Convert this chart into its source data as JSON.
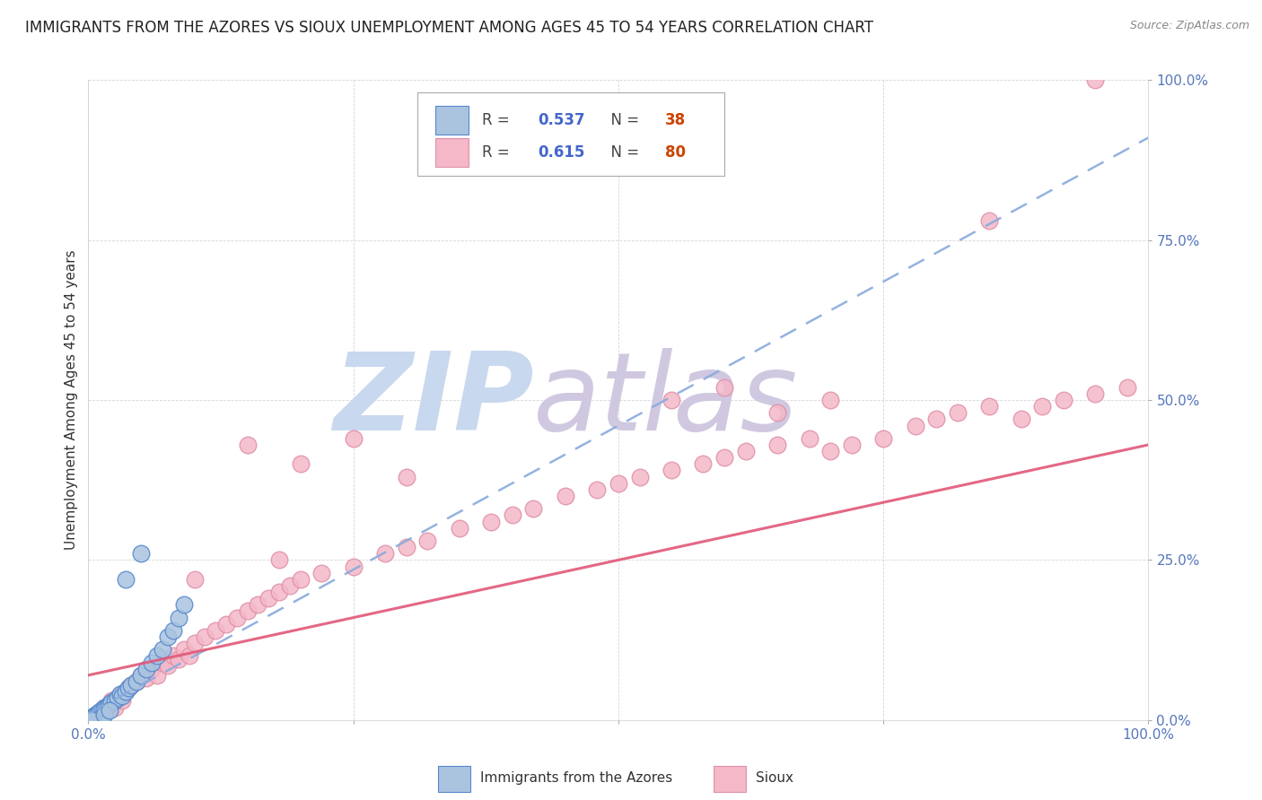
{
  "title": "IMMIGRANTS FROM THE AZORES VS SIOUX UNEMPLOYMENT AMONG AGES 45 TO 54 YEARS CORRELATION CHART",
  "source": "Source: ZipAtlas.com",
  "ylabel": "Unemployment Among Ages 45 to 54 years",
  "xlim": [
    0,
    1
  ],
  "ylim": [
    0,
    1
  ],
  "xticks": [
    0,
    0.25,
    0.5,
    0.75,
    1.0
  ],
  "yticks": [
    0,
    0.25,
    0.5,
    0.75,
    1.0
  ],
  "xticklabels": [
    "0.0%",
    "",
    "",
    "",
    "100.0%"
  ],
  "yticklabels": [
    "0.0%",
    "25.0%",
    "50.0%",
    "75.0%",
    "100.0%"
  ],
  "blue_R": 0.537,
  "blue_N": 38,
  "pink_R": 0.615,
  "pink_N": 80,
  "blue_color": "#aac4e0",
  "blue_edge_color": "#5588cc",
  "pink_color": "#f4b8c8",
  "pink_edge_color": "#e090a8",
  "blue_line_color": "#88aadd",
  "pink_line_color": "#e05878",
  "tick_color": "#5577bb",
  "blue_scatter": [
    [
      0.005,
      0.005
    ],
    [
      0.006,
      0.008
    ],
    [
      0.007,
      0.006
    ],
    [
      0.008,
      0.01
    ],
    [
      0.009,
      0.007
    ],
    [
      0.01,
      0.012
    ],
    [
      0.012,
      0.015
    ],
    [
      0.013,
      0.01
    ],
    [
      0.015,
      0.02
    ],
    [
      0.016,
      0.018
    ],
    [
      0.018,
      0.022
    ],
    [
      0.02,
      0.025
    ],
    [
      0.022,
      0.028
    ],
    [
      0.025,
      0.03
    ],
    [
      0.028,
      0.035
    ],
    [
      0.03,
      0.04
    ],
    [
      0.032,
      0.038
    ],
    [
      0.035,
      0.045
    ],
    [
      0.038,
      0.05
    ],
    [
      0.04,
      0.055
    ],
    [
      0.045,
      0.06
    ],
    [
      0.05,
      0.07
    ],
    [
      0.055,
      0.08
    ],
    [
      0.06,
      0.09
    ],
    [
      0.065,
      0.1
    ],
    [
      0.07,
      0.11
    ],
    [
      0.075,
      0.13
    ],
    [
      0.08,
      0.14
    ],
    [
      0.085,
      0.16
    ],
    [
      0.09,
      0.18
    ],
    [
      0.035,
      0.22
    ],
    [
      0.05,
      0.26
    ],
    [
      0.003,
      0.003
    ],
    [
      0.004,
      0.004
    ],
    [
      0.002,
      0.002
    ],
    [
      0.001,
      0.001
    ],
    [
      0.015,
      0.008
    ],
    [
      0.02,
      0.015
    ]
  ],
  "pink_scatter": [
    [
      0.005,
      0.005
    ],
    [
      0.008,
      0.008
    ],
    [
      0.01,
      0.01
    ],
    [
      0.012,
      0.015
    ],
    [
      0.015,
      0.02
    ],
    [
      0.018,
      0.018
    ],
    [
      0.02,
      0.025
    ],
    [
      0.022,
      0.03
    ],
    [
      0.025,
      0.02
    ],
    [
      0.028,
      0.035
    ],
    [
      0.03,
      0.04
    ],
    [
      0.032,
      0.03
    ],
    [
      0.035,
      0.045
    ],
    [
      0.038,
      0.05
    ],
    [
      0.04,
      0.055
    ],
    [
      0.045,
      0.06
    ],
    [
      0.05,
      0.07
    ],
    [
      0.055,
      0.065
    ],
    [
      0.06,
      0.08
    ],
    [
      0.065,
      0.07
    ],
    [
      0.07,
      0.09
    ],
    [
      0.075,
      0.085
    ],
    [
      0.08,
      0.1
    ],
    [
      0.085,
      0.095
    ],
    [
      0.09,
      0.11
    ],
    [
      0.095,
      0.1
    ],
    [
      0.1,
      0.12
    ],
    [
      0.11,
      0.13
    ],
    [
      0.12,
      0.14
    ],
    [
      0.13,
      0.15
    ],
    [
      0.14,
      0.16
    ],
    [
      0.15,
      0.17
    ],
    [
      0.16,
      0.18
    ],
    [
      0.17,
      0.19
    ],
    [
      0.18,
      0.2
    ],
    [
      0.19,
      0.21
    ],
    [
      0.2,
      0.22
    ],
    [
      0.22,
      0.23
    ],
    [
      0.25,
      0.24
    ],
    [
      0.28,
      0.26
    ],
    [
      0.3,
      0.27
    ],
    [
      0.32,
      0.28
    ],
    [
      0.35,
      0.3
    ],
    [
      0.38,
      0.31
    ],
    [
      0.4,
      0.32
    ],
    [
      0.42,
      0.33
    ],
    [
      0.45,
      0.35
    ],
    [
      0.48,
      0.36
    ],
    [
      0.5,
      0.37
    ],
    [
      0.52,
      0.38
    ],
    [
      0.55,
      0.39
    ],
    [
      0.58,
      0.4
    ],
    [
      0.6,
      0.41
    ],
    [
      0.62,
      0.42
    ],
    [
      0.65,
      0.43
    ],
    [
      0.68,
      0.44
    ],
    [
      0.7,
      0.42
    ],
    [
      0.72,
      0.43
    ],
    [
      0.75,
      0.44
    ],
    [
      0.78,
      0.46
    ],
    [
      0.8,
      0.47
    ],
    [
      0.82,
      0.48
    ],
    [
      0.85,
      0.49
    ],
    [
      0.88,
      0.47
    ],
    [
      0.9,
      0.49
    ],
    [
      0.92,
      0.5
    ],
    [
      0.95,
      0.51
    ],
    [
      0.98,
      0.52
    ],
    [
      0.15,
      0.43
    ],
    [
      0.2,
      0.4
    ],
    [
      0.25,
      0.44
    ],
    [
      0.3,
      0.38
    ],
    [
      0.55,
      0.5
    ],
    [
      0.6,
      0.52
    ],
    [
      0.65,
      0.48
    ],
    [
      0.7,
      0.5
    ],
    [
      0.85,
      0.78
    ],
    [
      0.95,
      1.0
    ],
    [
      0.1,
      0.22
    ],
    [
      0.18,
      0.25
    ]
  ],
  "watermark_zip": "ZIP",
  "watermark_atlas": "atlas",
  "watermark_color_zip": "#c8d8ee",
  "watermark_color_atlas": "#d0c8e0"
}
